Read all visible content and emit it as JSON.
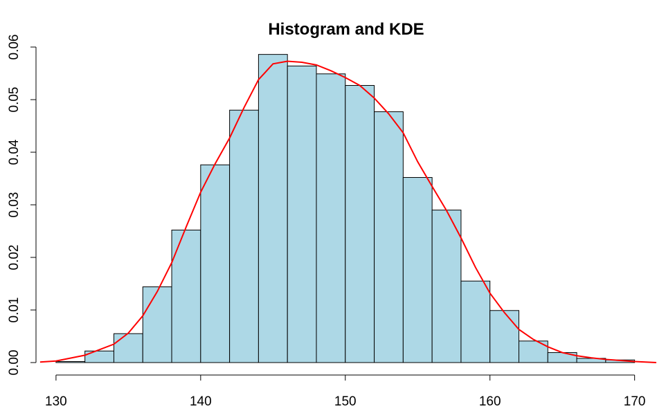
{
  "chart_data": {
    "type": "bar",
    "title": "Histogram and KDE",
    "xlabel": "",
    "ylabel": "",
    "xlim": [
      129,
      171.5
    ],
    "ylim": [
      0,
      0.06
    ],
    "x_ticks": [
      130,
      140,
      150,
      160,
      170
    ],
    "x_tick_labels": [
      "130",
      "140",
      "150",
      "160",
      "170"
    ],
    "y_ticks": [
      0,
      0.01,
      0.02,
      0.03,
      0.04,
      0.05,
      0.06
    ],
    "y_tick_labels": [
      "0.00",
      "0.01",
      "0.02",
      "0.03",
      "0.04",
      "0.05",
      "0.06"
    ],
    "grid": false,
    "bar_color": "#add8e6",
    "bin_edges": [
      130,
      132,
      134,
      136,
      138,
      140,
      142,
      144,
      146,
      148,
      150,
      152,
      154,
      156,
      158,
      160,
      162,
      164,
      166,
      168,
      170
    ],
    "values": [
      0.0002,
      0.0022,
      0.0055,
      0.0144,
      0.0252,
      0.0376,
      0.048,
      0.0586,
      0.0564,
      0.0549,
      0.0527,
      0.0477,
      0.0352,
      0.029,
      0.0155,
      0.0099,
      0.0041,
      0.0019,
      0.0008,
      0.0005
    ],
    "series": [
      {
        "type": "line",
        "color": "#ff0000",
        "x": [
          128.9,
          130,
          132,
          134,
          135,
          136,
          137,
          138,
          139,
          140,
          141,
          142,
          143,
          144,
          145,
          146,
          147,
          148,
          149,
          150,
          151,
          152,
          153,
          154,
          155,
          156,
          157,
          158,
          159,
          160,
          161,
          162,
          163,
          164,
          165,
          166,
          167,
          168,
          169,
          170,
          171.5
        ],
        "y": [
          0.0001,
          0.0003,
          0.0014,
          0.0035,
          0.0056,
          0.0089,
          0.0135,
          0.019,
          0.0258,
          0.0324,
          0.0378,
          0.0427,
          0.0485,
          0.0538,
          0.0568,
          0.0573,
          0.0571,
          0.0566,
          0.0555,
          0.0542,
          0.0527,
          0.0503,
          0.0473,
          0.0437,
          0.0382,
          0.0335,
          0.0289,
          0.0237,
          0.0181,
          0.0132,
          0.0095,
          0.0063,
          0.0044,
          0.003,
          0.0019,
          0.0013,
          0.0009,
          0.0006,
          0.0004,
          0.0002,
          0.0
        ]
      }
    ]
  }
}
